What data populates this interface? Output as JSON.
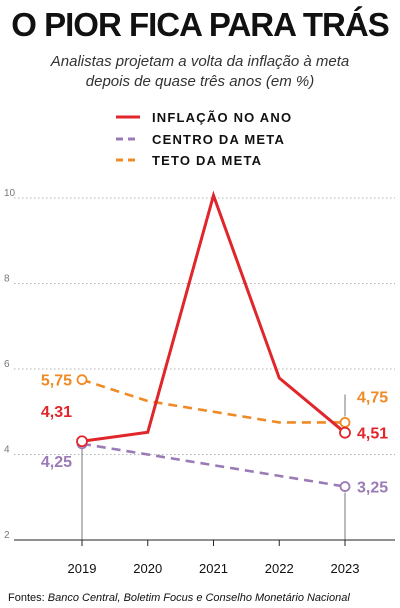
{
  "chart_data": {
    "type": "line",
    "title": "O PIOR FICA PARA TRÁS",
    "subtitle_line1": "Analistas projetam a volta da inflação à meta",
    "subtitle_line2": "depois de quase três anos (em %)",
    "x": [
      "2019",
      "2020",
      "2021",
      "2022",
      "2023"
    ],
    "ylim": [
      2,
      10
    ],
    "yticks": [
      2,
      4,
      6,
      8,
      10
    ],
    "grid": true,
    "legend_position": "top",
    "series": [
      {
        "name": "INFLAÇÃO NO ANO",
        "color": "#e0262b",
        "dash": "none",
        "values": [
          4.31,
          4.52,
          10.06,
          5.79,
          4.51
        ]
      },
      {
        "name": "CENTRO DA META",
        "color": "#9b7bb5",
        "dash": "dashed",
        "values": [
          4.25,
          4.0,
          3.75,
          3.5,
          3.25
        ]
      },
      {
        "name": "TETO DA META",
        "color": "#f08a24",
        "dash": "dashed",
        "values": [
          5.75,
          5.25,
          5.0,
          4.75,
          4.75
        ]
      }
    ],
    "labels": {
      "infl_start": "4,31",
      "infl_end": "4,51",
      "centro_start": "4,25",
      "centro_end": "3,25",
      "teto_start": "5,75",
      "teto_end": "4,75"
    },
    "source_prefix": "Fontes: ",
    "source_text": "Banco Central, Boletim Focus e Conselho Monetário Nacional"
  }
}
